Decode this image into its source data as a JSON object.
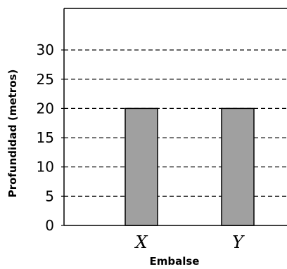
{
  "chart_data": {
    "type": "bar",
    "categories": [
      "X",
      "Y"
    ],
    "values": [
      20,
      20
    ],
    "xlabel": "Embalse",
    "ylabel": "Profundidad (metros)",
    "ylim": [
      0,
      35
    ],
    "yticks": [
      0,
      5,
      10,
      15,
      20,
      25,
      30
    ],
    "grid": true,
    "grid_style": "dashed",
    "bar_color": "#a0a0a0",
    "bar_edge_color": "#000000"
  }
}
